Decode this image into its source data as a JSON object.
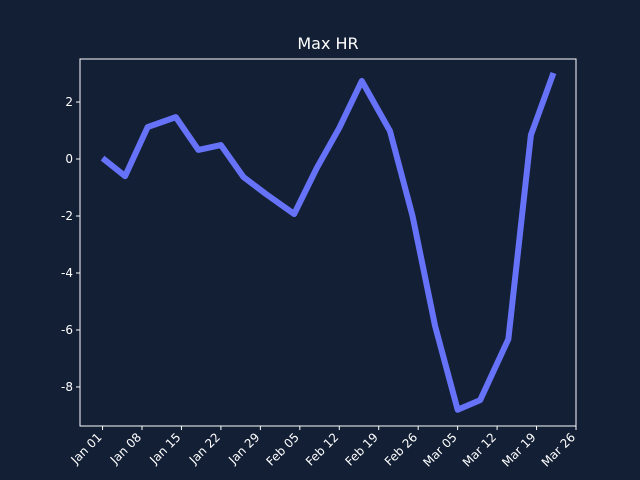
{
  "chart_data": {
    "type": "line",
    "title": "Max HR",
    "x": [
      "01-01",
      "01-05",
      "01-09",
      "01-14",
      "01-18",
      "01-22",
      "01-26",
      "01-30",
      "02-04",
      "02-08",
      "02-12",
      "02-16",
      "02-21",
      "02-25",
      "03-01",
      "03-05",
      "03-09",
      "03-14",
      "03-18",
      "03-22"
    ],
    "series": [
      {
        "name": "Max HR",
        "color": "#6673f9",
        "values": [
          0.03,
          -0.6,
          1.12,
          1.47,
          0.32,
          0.49,
          -0.63,
          -1.23,
          -1.93,
          -0.32,
          1.09,
          2.74,
          0.98,
          -2.0,
          -5.86,
          -8.8,
          -8.46,
          -6.32,
          0.84,
          3.02
        ]
      }
    ],
    "xlim": [
      "12-28",
      "03-26"
    ],
    "xticks": [
      {
        "value": "01-01",
        "label": "Jan 01"
      },
      {
        "value": "01-08",
        "label": "Jan 08"
      },
      {
        "value": "01-15",
        "label": "Jan 15"
      },
      {
        "value": "01-22",
        "label": "Jan 22"
      },
      {
        "value": "01-29",
        "label": "Jan 29"
      },
      {
        "value": "02-05",
        "label": "Feb 05"
      },
      {
        "value": "02-12",
        "label": "Feb 12"
      },
      {
        "value": "02-19",
        "label": "Feb 19"
      },
      {
        "value": "02-26",
        "label": "Feb 26"
      },
      {
        "value": "03-05",
        "label": "Mar 05"
      },
      {
        "value": "03-12",
        "label": "Mar 12"
      },
      {
        "value": "03-19",
        "label": "Mar 19"
      },
      {
        "value": "03-26",
        "label": "Mar 26"
      }
    ],
    "ylim": [
      -9.37,
      3.51
    ],
    "yticks": [
      -8,
      -6,
      -4,
      -2,
      0,
      2
    ]
  }
}
